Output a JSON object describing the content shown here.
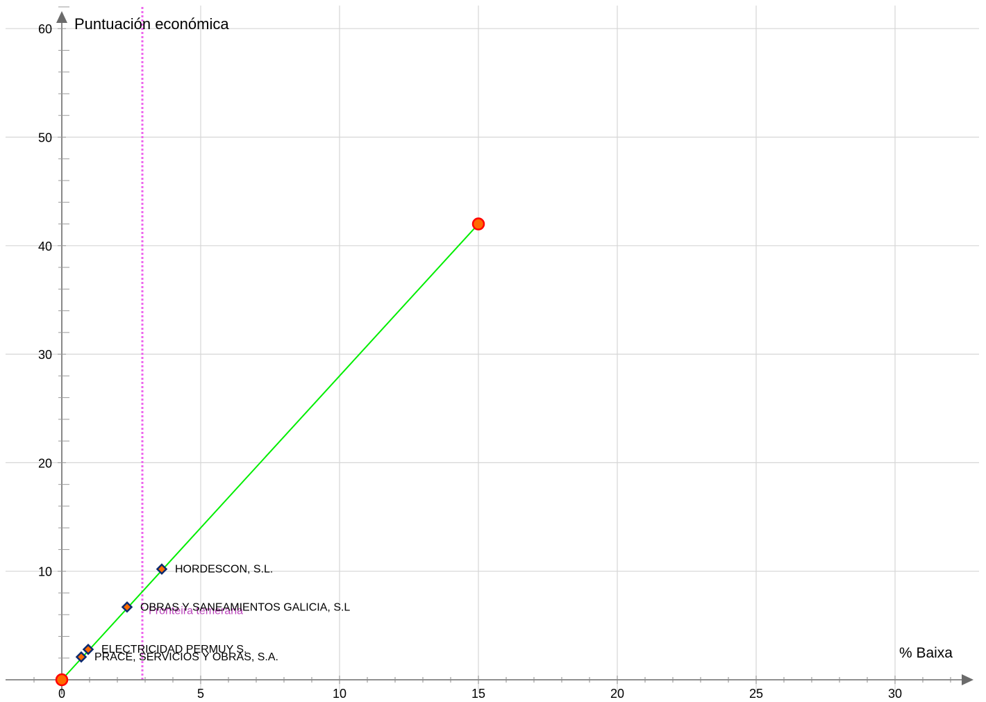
{
  "chart_data": {
    "type": "scatter",
    "xlabel": "% Baixa",
    "ylabel": "Puntuación económica",
    "xlim": [
      -2.2,
      32.9
    ],
    "ylim": [
      -2.4,
      62.4
    ],
    "grid": true,
    "x_ticks": [
      5,
      10,
      15,
      20,
      25,
      30
    ],
    "y_ticks": [
      10,
      20,
      30,
      40,
      50,
      60
    ],
    "origin_label": "0",
    "colors": {
      "grid": "#d6d6d6",
      "axis": "#6b6b6b",
      "line": "#00ee00",
      "threshold": "#ee66ee",
      "threshold_text": "#bb44bb",
      "endpoint_fill": "#ff6a00",
      "endpoint_stroke": "#ff0000",
      "marker_fill": "#ff6a00",
      "marker_stroke": "#0b2a6f"
    },
    "line_segment": {
      "x": [
        0,
        15
      ],
      "y": [
        0,
        42
      ]
    },
    "threshold": {
      "x": 2.9,
      "label": "Fronteira temeraria"
    },
    "points": [
      {
        "label": "HORDESCON, S.L.",
        "x": 3.6,
        "y": 10.2
      },
      {
        "label": "OBRAS Y SANEAMIENTOS GALICIA, S.L",
        "x": 2.35,
        "y": 6.7
      },
      {
        "label": "ELECTRICIDAD PERMUY S.",
        "x": 0.95,
        "y": 2.8
      },
      {
        "label": "PRACE, SERVICIOS Y OBRAS, S.A.",
        "x": 0.7,
        "y": 2.1
      }
    ]
  }
}
